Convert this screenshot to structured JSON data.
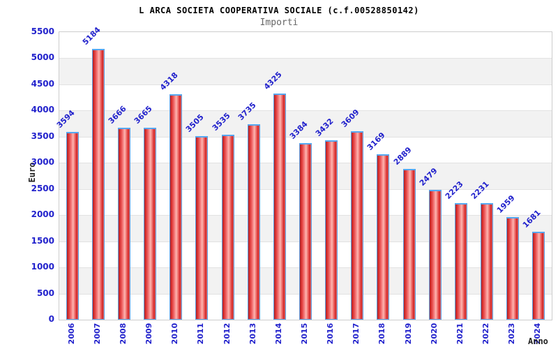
{
  "header": {
    "title": "L ARCA SOCIETA COOPERATIVA SOCIALE (c.f.00528850142)",
    "subtitle": "Importi"
  },
  "chart_data": {
    "type": "bar",
    "title": "L ARCA SOCIETA COOPERATIVA SOCIALE (c.f.00528850142)",
    "subtitle": "Importi",
    "xlabel": "Anno",
    "ylabel": "Euro",
    "categories": [
      "2006",
      "2007",
      "2008",
      "2009",
      "2010",
      "2011",
      "2012",
      "2013",
      "2014",
      "2015",
      "2016",
      "2017",
      "2018",
      "2019",
      "2020",
      "2021",
      "2022",
      "2023",
      "2024"
    ],
    "values": [
      3594,
      5184,
      3666,
      3665,
      4318,
      3505,
      3535,
      3735,
      4325,
      3384,
      3432,
      3609,
      3169,
      2889,
      2479,
      2223,
      2231,
      1959,
      1681
    ],
    "ylim": [
      0,
      5500
    ],
    "ytick_step": 500,
    "grid": "horizontal-bands-alternating",
    "legend": "none",
    "bar_value_labels_rotation_deg": -45,
    "x_tick_rotation_deg": -90
  },
  "colors": {
    "value_text_blue": "#2222cc",
    "bar_fill_dark": "#b42020",
    "bar_fill_light": "#fdb6b0",
    "bar_border_blue": "#5d9fe3",
    "band_gray": "#f2f2f2",
    "gridline": "#e2e2e2",
    "plot_border": "#cccccc",
    "title_black": "#000000",
    "subtitle_gray": "#666666"
  }
}
